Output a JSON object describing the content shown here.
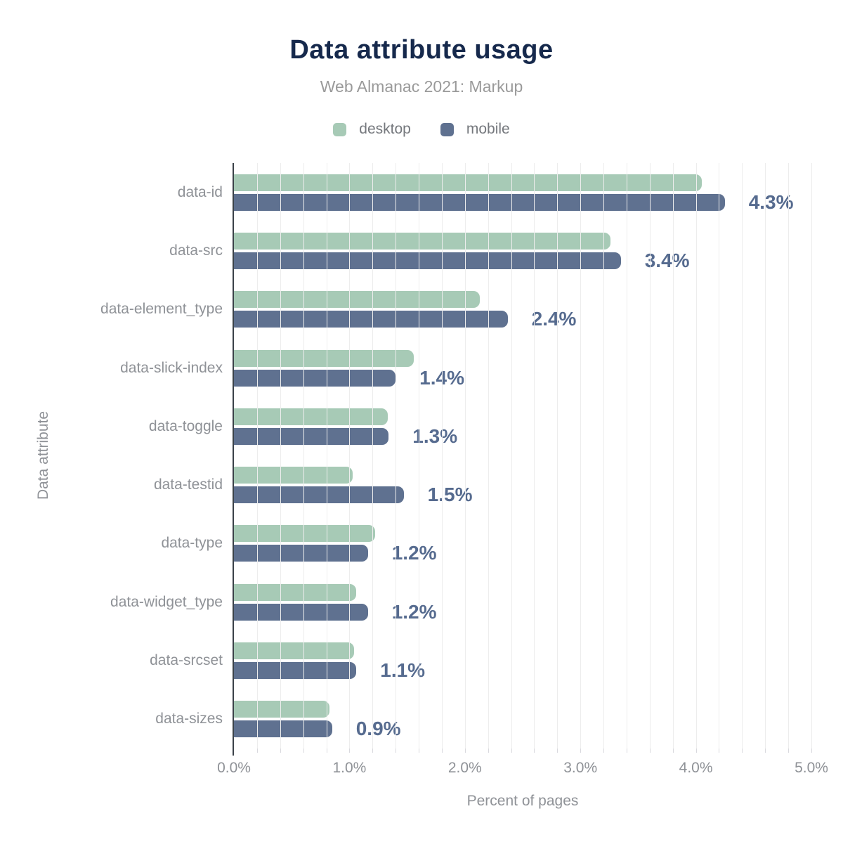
{
  "header": {
    "title": "Data attribute usage",
    "subtitle": "Web Almanac 2021: Markup"
  },
  "legend": [
    {
      "label": "desktop",
      "color": "#a7cab6"
    },
    {
      "label": "mobile",
      "color": "#5f7190"
    }
  ],
  "colors": {
    "desktop": "#a7cab6",
    "mobile": "#5f7190",
    "title": "#16294c",
    "subtitle": "#9a9a9a",
    "axis_labels": "#8f9297",
    "value_labels": "#566b8f",
    "gridline": "#ededed",
    "axis_line": "#3a4148"
  },
  "chart_data": {
    "type": "bar",
    "orientation": "horizontal",
    "title": "Data attribute usage",
    "subtitle": "Web Almanac 2021: Markup",
    "xlabel": "Percent of pages",
    "ylabel": "Data attribute",
    "xlim": [
      0,
      5
    ],
    "x_tick_labels": [
      "0.0%",
      "1.0%",
      "2.0%",
      "3.0%",
      "4.0%",
      "5.0%"
    ],
    "x_tick_values": [
      0,
      1,
      2,
      3,
      4,
      5
    ],
    "gridline_interval": 0.2,
    "grid": "vertical-only",
    "legend_position": "top-center",
    "categories": [
      "data-id",
      "data-src",
      "data-element_type",
      "data-slick-index",
      "data-toggle",
      "data-testid",
      "data-type",
      "data-widget_type",
      "data-srcset",
      "data-sizes"
    ],
    "series": [
      {
        "name": "desktop",
        "values": [
          4.05,
          3.26,
          2.13,
          1.56,
          1.33,
          1.03,
          1.22,
          1.06,
          1.04,
          0.83
        ]
      },
      {
        "name": "mobile",
        "values": [
          4.25,
          3.35,
          2.37,
          1.4,
          1.34,
          1.47,
          1.16,
          1.16,
          1.06,
          0.85
        ]
      }
    ],
    "value_labels": [
      "4.3%",
      "3.4%",
      "2.4%",
      "1.4%",
      "1.3%",
      "1.5%",
      "1.2%",
      "1.2%",
      "1.1%",
      "0.9%"
    ],
    "value_label_series": "mobile"
  }
}
